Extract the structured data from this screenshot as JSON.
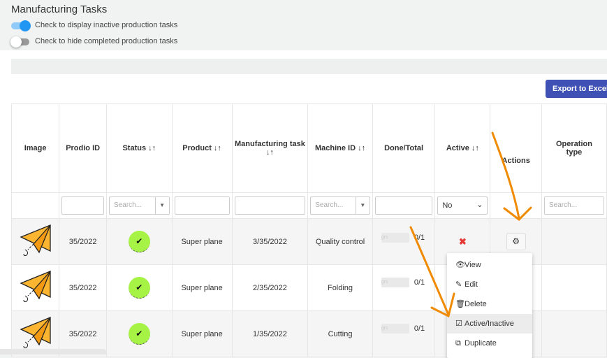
{
  "title": "Manufacturing Tasks",
  "toggles": [
    {
      "label": "Check to display inactive production tasks",
      "on": true
    },
    {
      "label": "Check to hide completed production tasks",
      "on": false
    }
  ],
  "export_label": "Export to Excel",
  "columns": [
    "Image",
    "Prodio ID",
    "Status ↓↑",
    "Product ↓↑",
    "Manufacturing task ↓↑",
    "Machine ID ↓↑",
    "Done/Total",
    "Active ↓↑",
    "Actions",
    "Operation type"
  ],
  "filters": {
    "search_placeholder": "Search...",
    "active_value": "No"
  },
  "rows": [
    {
      "id": "35/2022",
      "product": "Super plane",
      "task": "3/35/2022",
      "machine": "Quality control",
      "progress": "grs",
      "done": "0/1"
    },
    {
      "id": "35/2022",
      "product": "Super plane",
      "task": "2/35/2022",
      "machine": "Folding",
      "progress": "grs",
      "done": "0/1"
    },
    {
      "id": "35/2022",
      "product": "Super plane",
      "task": "1/35/2022",
      "machine": "Cutting",
      "progress": "grs",
      "done": "0/1"
    }
  ],
  "menu": [
    {
      "icon": "eye-icon",
      "label": "View"
    },
    {
      "icon": "pencil-icon",
      "label": "Edit"
    },
    {
      "icon": "trash-icon",
      "label": "Delete"
    },
    {
      "icon": "check-square-icon",
      "label": "Active/Inactive"
    },
    {
      "icon": "copy-icon",
      "label": "Duplicate"
    }
  ],
  "colors": {
    "accent": "#3f51b5",
    "toggle_on": "#2196f3",
    "status_done": "#a6f346",
    "annotation": "#f08a00"
  }
}
